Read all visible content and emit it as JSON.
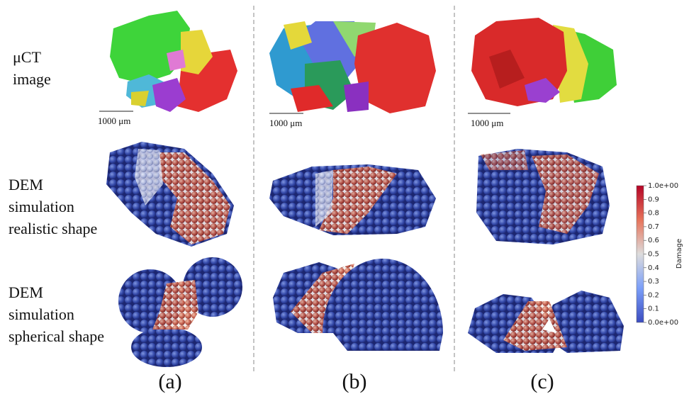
{
  "figure": {
    "row_labels": [
      {
        "lines": [
          "μCT",
          "image"
        ]
      },
      {
        "lines": [
          "DEM",
          "simulation",
          "realistic shape"
        ]
      },
      {
        "lines": [
          "DEM",
          "simulation",
          "spherical shape"
        ]
      }
    ],
    "scale_labels": [
      "1000 μm",
      "1000 μm",
      "1000 μm"
    ],
    "panel_labels": [
      "(a)",
      "(b)",
      "(c)"
    ],
    "colorbar": {
      "title": "Damage",
      "lim": [
        0,
        1
      ],
      "ticks": [
        {
          "value": 1.0,
          "label": "1.0e+00"
        },
        0.9,
        0.8,
        0.7,
        0.6,
        0.5,
        0.4,
        0.3,
        0.2,
        0.1,
        {
          "value": 0,
          "label": "0.0e+00"
        }
      ]
    }
  }
}
